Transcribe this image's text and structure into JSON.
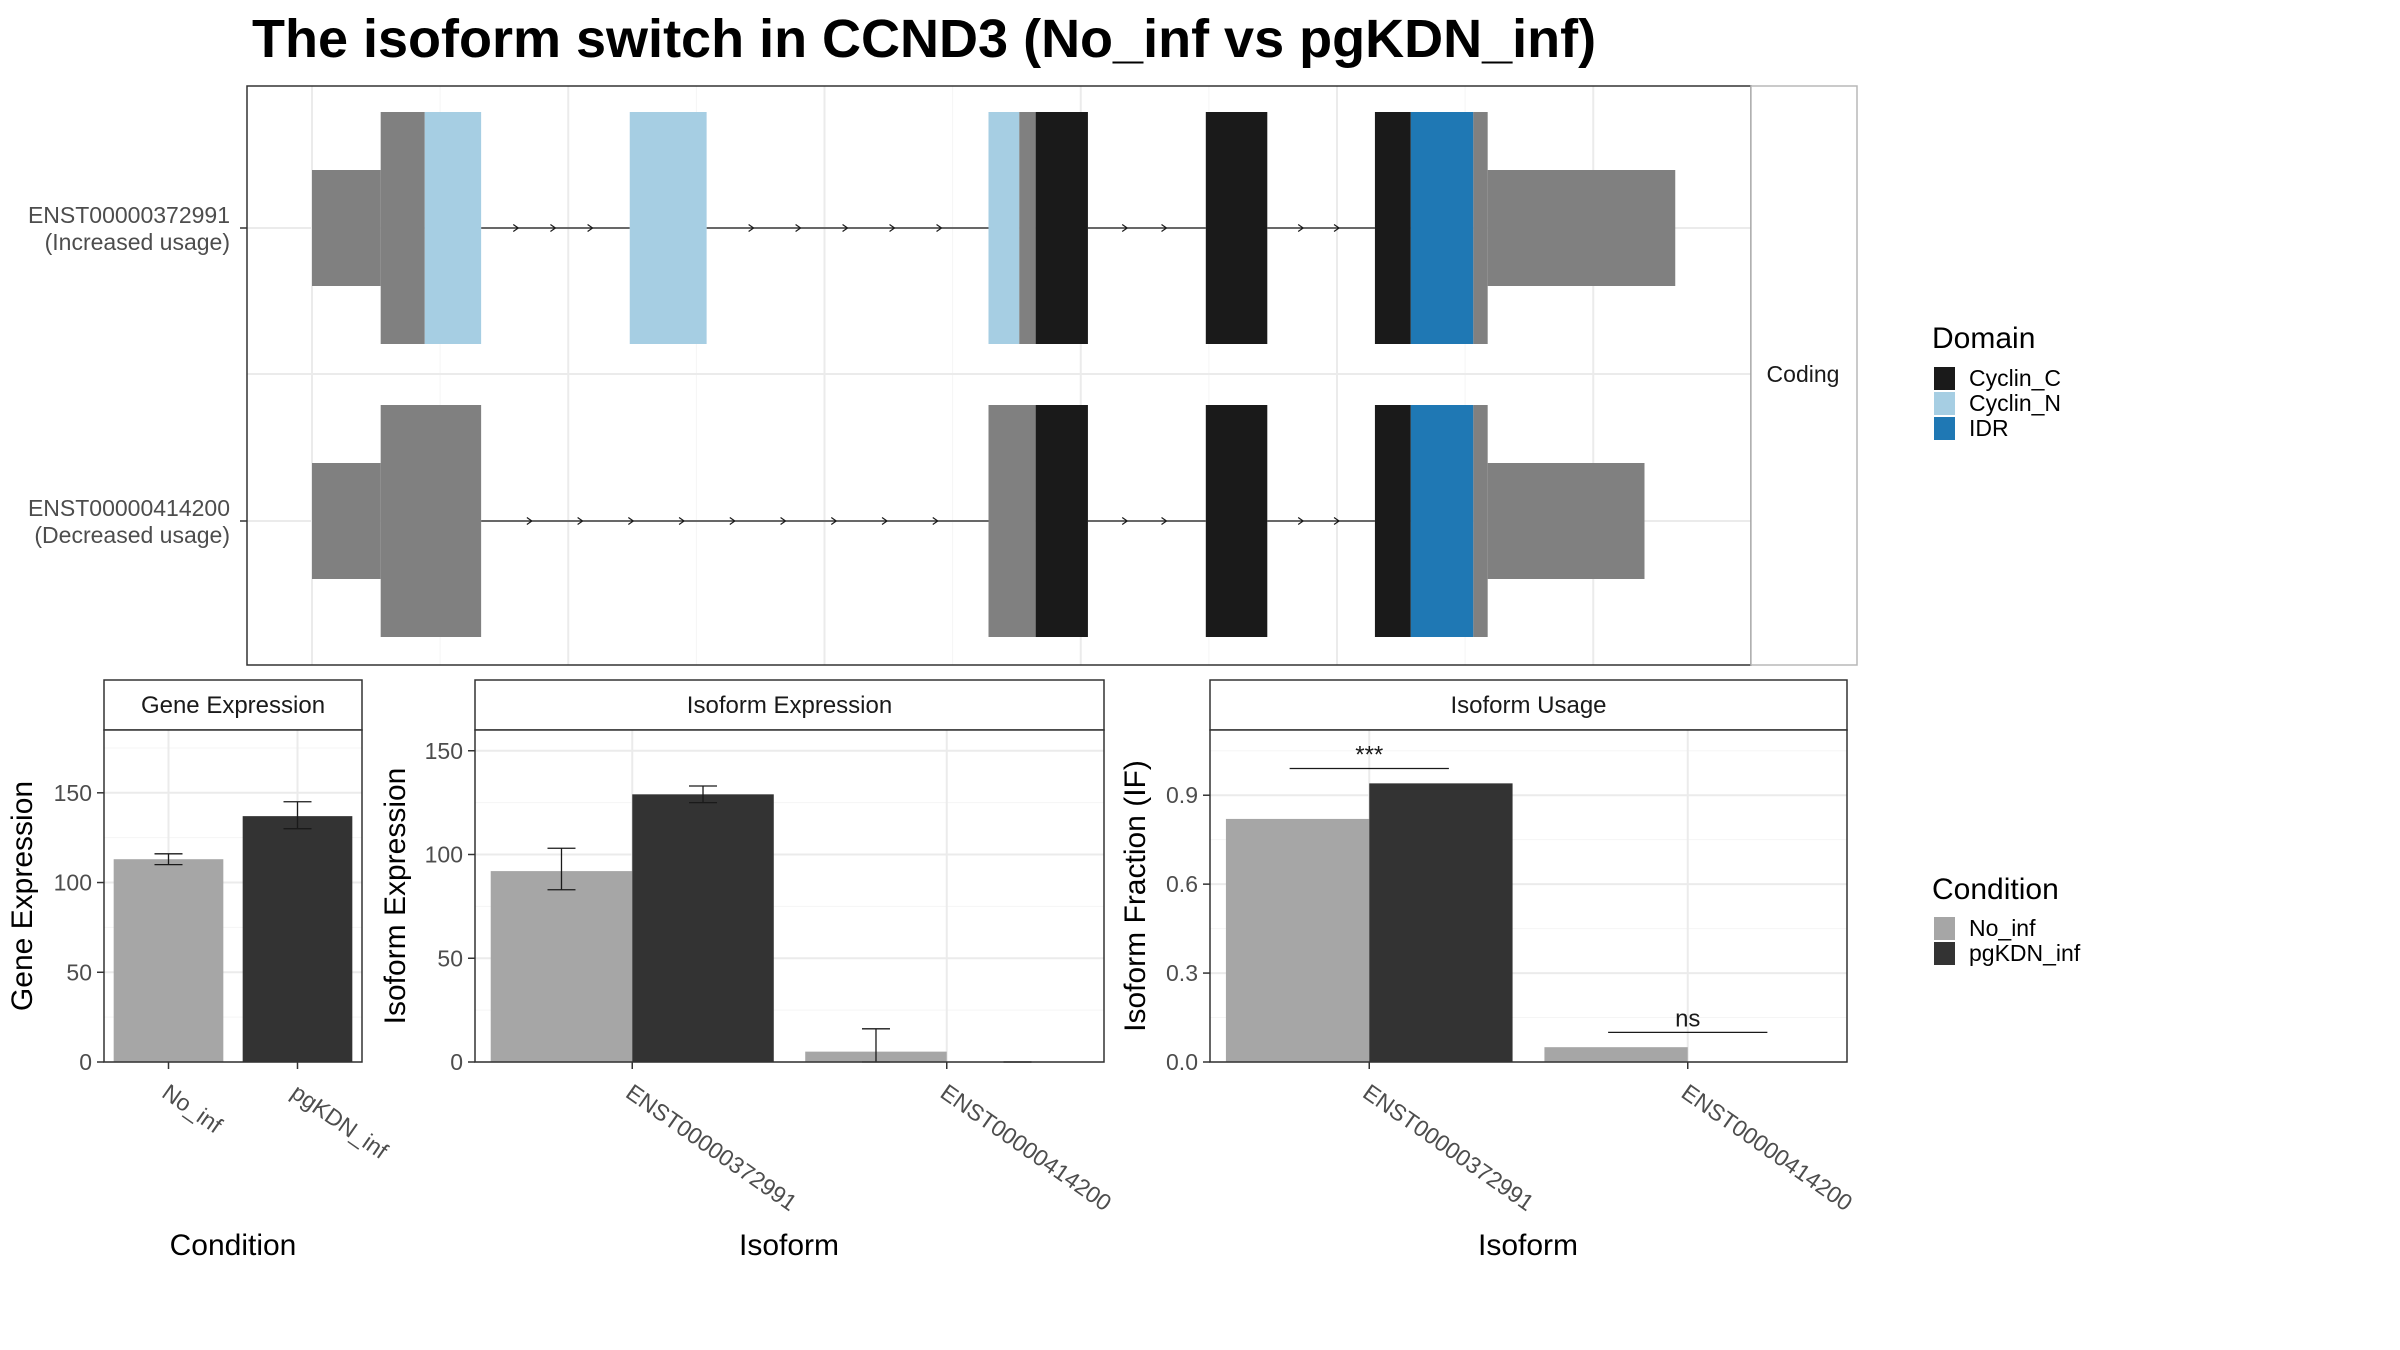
{
  "title": "The isoform switch in CCND3 (No_inf vs pgKDN_inf)",
  "strip_label": "Coding",
  "colors": {
    "cyclin_c": "#1A1A1A",
    "cyclin_n": "#A6CEE3",
    "idr": "#1F78B4",
    "utr": "#808080",
    "no_inf": "#A6A6A6",
    "pgkdn_inf": "#333333"
  },
  "domain_legend": {
    "title": "Domain",
    "items": [
      {
        "label": "Cyclin_C",
        "color": "#1A1A1A"
      },
      {
        "label": "Cyclin_N",
        "color": "#A6CEE3"
      },
      {
        "label": "IDR",
        "color": "#1F78B4"
      }
    ]
  },
  "condition_legend": {
    "title": "Condition",
    "items": [
      {
        "label": "No_inf",
        "color": "#A6A6A6"
      },
      {
        "label": "pgKDN_inf",
        "color": "#333333"
      }
    ]
  },
  "chart_data": [
    {
      "type": "gene-structure",
      "isoforms": [
        {
          "id": "ENST00000372991",
          "note": "(Increased usage)",
          "segments": [
            {
              "feature": "utr",
              "start": 0.0,
              "end": 0.067
            },
            {
              "feature": "utr",
              "start": 0.067,
              "end": 0.11,
              "full": true
            },
            {
              "feature": "Cyclin_N",
              "start": 0.11,
              "end": 0.165
            },
            {
              "feature": "Cyclin_N",
              "start": 0.31,
              "end": 0.385
            },
            {
              "feature": "Cyclin_N",
              "start": 0.66,
              "end": 0.69
            },
            {
              "feature": "utr",
              "start": 0.69,
              "end": 0.706,
              "full": true
            },
            {
              "feature": "Cyclin_C",
              "start": 0.706,
              "end": 0.757
            },
            {
              "feature": "Cyclin_C",
              "start": 0.872,
              "end": 0.932
            },
            {
              "feature": "Cyclin_C",
              "start": 1.037,
              "end": 1.072
            },
            {
              "feature": "IDR",
              "start": 1.072,
              "end": 1.133
            },
            {
              "feature": "utr",
              "start": 1.133,
              "end": 1.147,
              "full": true
            },
            {
              "feature": "utr",
              "start": 1.147,
              "end": 1.33
            }
          ],
          "introns": [
            [
              0.165,
              0.31
            ],
            [
              0.385,
              0.66
            ],
            [
              0.757,
              0.872
            ],
            [
              0.932,
              1.037
            ]
          ]
        },
        {
          "id": "ENST00000414200",
          "note": "(Decreased usage)",
          "segments": [
            {
              "feature": "utr",
              "start": 0.0,
              "end": 0.067
            },
            {
              "feature": "utr",
              "start": 0.067,
              "end": 0.165,
              "full": true
            },
            {
              "feature": "utr",
              "start": 0.66,
              "end": 0.706,
              "full": true
            },
            {
              "feature": "Cyclin_C",
              "start": 0.706,
              "end": 0.757
            },
            {
              "feature": "Cyclin_C",
              "start": 0.872,
              "end": 0.932
            },
            {
              "feature": "Cyclin_C",
              "start": 1.037,
              "end": 1.072
            },
            {
              "feature": "IDR",
              "start": 1.072,
              "end": 1.133
            },
            {
              "feature": "utr",
              "start": 1.133,
              "end": 1.147,
              "full": true
            },
            {
              "feature": "utr",
              "start": 1.147,
              "end": 1.3
            }
          ],
          "introns": [
            [
              0.165,
              0.66
            ],
            [
              0.757,
              0.872
            ],
            [
              0.932,
              1.037
            ]
          ]
        }
      ]
    },
    {
      "type": "bar",
      "strip_title": "Gene Expression",
      "xlabel": "Condition",
      "ylabel": "Gene Expression",
      "ylim": [
        0,
        185
      ],
      "yticks": [
        0,
        50,
        100,
        150
      ],
      "categories": [
        "No_inf",
        "pgKDN_inf"
      ],
      "values": [
        113,
        137
      ],
      "errors": [
        [
          110,
          116
        ],
        [
          130,
          145
        ]
      ]
    },
    {
      "type": "bar",
      "strip_title": "Isoform Expression",
      "xlabel": "Isoform",
      "ylabel": "Isoform Expression",
      "ylim": [
        0,
        160
      ],
      "yticks": [
        0,
        50,
        100,
        150
      ],
      "categories": [
        "ENST00000372991",
        "ENST00000414200"
      ],
      "series": [
        {
          "name": "No_inf",
          "values": [
            92,
            5
          ],
          "errors": [
            [
              83,
              103
            ],
            [
              0,
              16
            ]
          ]
        },
        {
          "name": "pgKDN_inf",
          "values": [
            129,
            0
          ],
          "errors": [
            [
              125,
              133
            ],
            [
              0,
              0
            ]
          ]
        }
      ]
    },
    {
      "type": "bar",
      "strip_title": "Isoform Usage",
      "xlabel": "Isoform",
      "ylabel": "Isoform Fraction (IF)",
      "ylim": [
        0,
        1.12
      ],
      "yticks": [
        0.0,
        0.3,
        0.6,
        0.9
      ],
      "ytick_labels": [
        "0.0",
        "0.3",
        "0.6",
        "0.9"
      ],
      "categories": [
        "ENST00000372991",
        "ENST00000414200"
      ],
      "series": [
        {
          "name": "No_inf",
          "values": [
            0.82,
            0.05
          ]
        },
        {
          "name": "pgKDN_inf",
          "values": [
            0.94,
            0.0
          ]
        }
      ],
      "significance": [
        {
          "label": "***",
          "level": 0.99
        },
        {
          "label": "ns",
          "level": 0.1
        }
      ]
    }
  ]
}
